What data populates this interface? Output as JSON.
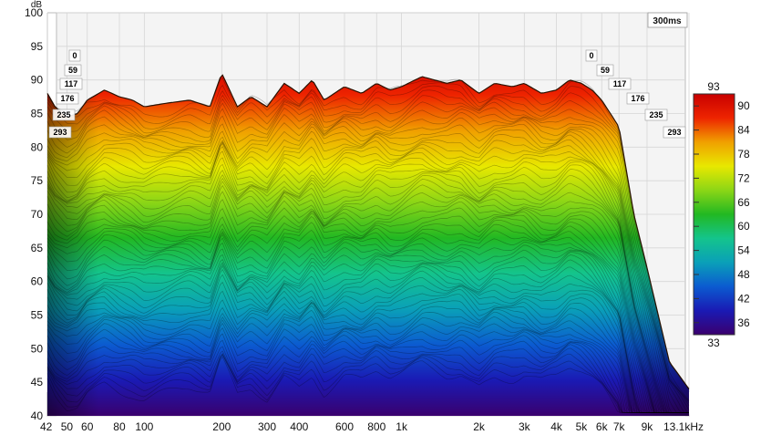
{
  "chart_data": {
    "type": "waterfall-3d",
    "window_label": "300ms",
    "y_unit": "dB",
    "ylim": [
      40,
      100
    ],
    "y_ticks": [
      "100",
      "95",
      "90",
      "85",
      "80",
      "75",
      "70",
      "65",
      "60",
      "55",
      "50",
      "45",
      "40"
    ],
    "x_unit": "kHz",
    "x_scale": "log",
    "xlim": [
      42,
      13100
    ],
    "x_ticks": [
      {
        "v": 42,
        "label": "42"
      },
      {
        "v": 50,
        "label": "50"
      },
      {
        "v": 60,
        "label": "60"
      },
      {
        "v": 80,
        "label": "80"
      },
      {
        "v": 100,
        "label": "100"
      },
      {
        "v": 200,
        "label": "200"
      },
      {
        "v": 300,
        "label": "300"
      },
      {
        "v": 400,
        "label": "400"
      },
      {
        "v": 600,
        "label": "600"
      },
      {
        "v": 800,
        "label": "800"
      },
      {
        "v": 1000,
        "label": "1k"
      },
      {
        "v": 2000,
        "label": "2k"
      },
      {
        "v": 3000,
        "label": "3k"
      },
      {
        "v": 4000,
        "label": "4k"
      },
      {
        "v": 5000,
        "label": "5k"
      },
      {
        "v": 6000,
        "label": "6k"
      },
      {
        "v": 7000,
        "label": "7k"
      },
      {
        "v": 9000,
        "label": "9k"
      },
      {
        "v": 13100,
        "label": "13.1kHz"
      }
    ],
    "time_slices_ms": [
      "0",
      "59",
      "117",
      "176",
      "235",
      "293"
    ],
    "colorbar": {
      "range": [
        33,
        93
      ],
      "max_label": "93",
      "min_label": "33",
      "ticks": [
        "90",
        "84",
        "78",
        "72",
        "66",
        "60",
        "54",
        "48",
        "42",
        "36"
      ],
      "colors": [
        "#3a006e",
        "#1a1ab4",
        "#0b5bd0",
        "#0aa0b8",
        "#14c48c",
        "#22b822",
        "#8cd616",
        "#e8e800",
        "#f0a000",
        "#ee2400",
        "#c80000"
      ]
    },
    "front_curve": {
      "x": [
        42,
        45,
        50,
        55,
        60,
        70,
        80,
        90,
        100,
        120,
        150,
        180,
        200,
        230,
        260,
        300,
        350,
        400,
        450,
        500,
        600,
        700,
        800,
        900,
        1000,
        1200,
        1500,
        1700,
        2000,
        2300,
        2700,
        3000,
        3500,
        4000,
        4500,
        5000,
        5500,
        6000,
        7000,
        8000,
        9000,
        11000,
        13100
      ],
      "y": [
        88,
        86,
        84.5,
        85,
        87,
        88.5,
        87.5,
        87,
        86,
        86.5,
        87,
        86,
        91,
        86,
        87.5,
        86,
        89.5,
        88,
        90,
        87,
        89,
        88,
        89.5,
        88.5,
        89,
        90.5,
        89.5,
        90,
        88,
        89.5,
        89,
        89.5,
        88,
        88.5,
        90,
        89.5,
        88.5,
        87,
        83,
        70,
        62,
        48,
        44
      ]
    }
  }
}
